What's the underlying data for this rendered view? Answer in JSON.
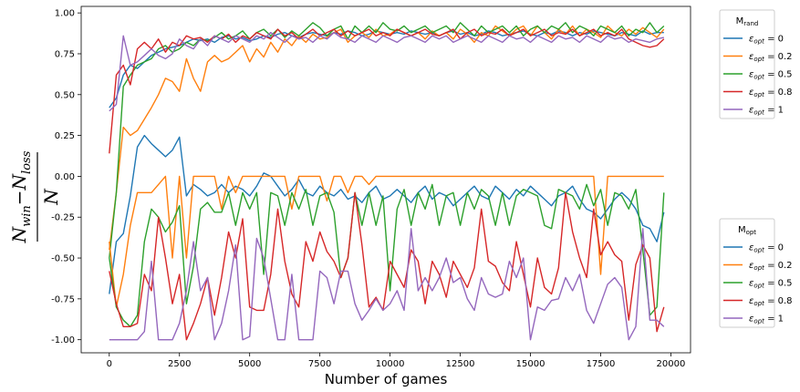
{
  "chart_data": {
    "type": "line",
    "xlabel": "Number of games",
    "ylabel": {
      "num_a": "N",
      "num_a_sub": "win",
      "minus": "−",
      "num_b": "N",
      "num_b_sub": "loss",
      "den": "N"
    },
    "xlim": [
      -1000,
      20700
    ],
    "ylim": [
      -1.08,
      1.04
    ],
    "xticks": [
      0,
      2500,
      5000,
      7500,
      10000,
      12500,
      15000,
      17500,
      20000
    ],
    "yticks": [
      -1.0,
      -0.75,
      -0.5,
      -0.25,
      0.0,
      0.25,
      0.5,
      0.75,
      1.0
    ],
    "x": [
      0,
      250,
      500,
      750,
      1000,
      1250,
      1500,
      1750,
      2000,
      2250,
      2500,
      2750,
      3000,
      3250,
      3500,
      3750,
      4000,
      4250,
      4500,
      4750,
      5000,
      5250,
      5500,
      5750,
      6000,
      6250,
      6500,
      6750,
      7000,
      7250,
      7500,
      7750,
      8000,
      8250,
      8500,
      8750,
      9000,
      9250,
      9500,
      9750,
      10000,
      10250,
      10500,
      10750,
      11000,
      11250,
      11500,
      11750,
      12000,
      12250,
      12500,
      12750,
      13000,
      13250,
      13500,
      13750,
      14000,
      14250,
      14500,
      14750,
      15000,
      15250,
      15500,
      15750,
      16000,
      16250,
      16500,
      16750,
      17000,
      17250,
      17500,
      17750,
      18000,
      18250,
      18500,
      18750,
      19000,
      19250,
      19500,
      19750
    ],
    "legends": [
      {
        "title": "M",
        "title_sub": "rand",
        "position": "upper-right-outside",
        "series": [
          {
            "label_main": "ε",
            "label_sub": "opt",
            "label_val": " = 0",
            "color": "#1f77b4",
            "values": [
              0.42,
              0.48,
              0.62,
              0.68,
              0.66,
              0.7,
              0.74,
              0.76,
              0.78,
              0.79,
              0.8,
              0.82,
              0.84,
              0.83,
              0.84,
              0.82,
              0.85,
              0.86,
              0.84,
              0.85,
              0.83,
              0.84,
              0.86,
              0.85,
              0.87,
              0.88,
              0.86,
              0.85,
              0.87,
              0.88,
              0.87,
              0.86,
              0.88,
              0.87,
              0.89,
              0.88,
              0.86,
              0.87,
              0.89,
              0.88,
              0.87,
              0.88,
              0.87,
              0.89,
              0.88,
              0.87,
              0.88,
              0.86,
              0.88,
              0.89,
              0.87,
              0.88,
              0.86,
              0.87,
              0.89,
              0.88,
              0.86,
              0.87,
              0.88,
              0.89,
              0.87,
              0.86,
              0.88,
              0.87,
              0.89,
              0.88,
              0.86,
              0.88,
              0.87,
              0.89,
              0.88,
              0.87,
              0.86,
              0.88,
              0.87,
              0.86,
              0.89,
              0.87,
              0.88,
              0.88
            ]
          },
          {
            "label_main": "ε",
            "label_sub": "opt",
            "label_val": " = 0.2",
            "color": "#ff7f0e",
            "values": [
              -0.45,
              -0.1,
              0.3,
              0.25,
              0.28,
              0.35,
              0.42,
              0.5,
              0.6,
              0.58,
              0.52,
              0.72,
              0.6,
              0.52,
              0.7,
              0.74,
              0.7,
              0.72,
              0.76,
              0.8,
              0.7,
              0.78,
              0.73,
              0.82,
              0.76,
              0.84,
              0.8,
              0.86,
              0.82,
              0.87,
              0.84,
              0.85,
              0.88,
              0.9,
              0.82,
              0.86,
              0.88,
              0.85,
              0.9,
              0.86,
              0.87,
              0.9,
              0.88,
              0.86,
              0.88,
              0.84,
              0.89,
              0.86,
              0.88,
              0.84,
              0.9,
              0.87,
              0.82,
              0.88,
              0.86,
              0.92,
              0.89,
              0.86,
              0.9,
              0.92,
              0.86,
              0.92,
              0.88,
              0.84,
              0.9,
              0.87,
              0.92,
              0.86,
              0.9,
              0.88,
              0.85,
              0.92,
              0.88,
              0.86,
              0.9,
              0.87,
              0.91,
              0.88,
              0.85,
              0.9
            ]
          },
          {
            "label_main": "ε",
            "label_sub": "opt",
            "label_val": " = 0.5",
            "color": "#2ca02c",
            "values": [
              -0.5,
              -0.1,
              0.55,
              0.62,
              0.68,
              0.7,
              0.72,
              0.78,
              0.8,
              0.76,
              0.78,
              0.82,
              0.8,
              0.84,
              0.83,
              0.85,
              0.88,
              0.84,
              0.86,
              0.89,
              0.84,
              0.88,
              0.9,
              0.86,
              0.9,
              0.85,
              0.89,
              0.86,
              0.9,
              0.94,
              0.91,
              0.86,
              0.9,
              0.92,
              0.84,
              0.92,
              0.88,
              0.92,
              0.88,
              0.94,
              0.9,
              0.89,
              0.92,
              0.88,
              0.9,
              0.92,
              0.88,
              0.9,
              0.92,
              0.88,
              0.94,
              0.9,
              0.86,
              0.92,
              0.88,
              0.9,
              0.92,
              0.88,
              0.92,
              0.86,
              0.9,
              0.92,
              0.88,
              0.92,
              0.9,
              0.94,
              0.88,
              0.92,
              0.9,
              0.86,
              0.92,
              0.9,
              0.88,
              0.92,
              0.86,
              0.9,
              0.88,
              0.94,
              0.88,
              0.92
            ]
          },
          {
            "label_main": "ε",
            "label_sub": "opt",
            "label_val": " = 0.8",
            "color": "#d62728",
            "values": [
              0.14,
              0.62,
              0.68,
              0.56,
              0.78,
              0.82,
              0.78,
              0.84,
              0.76,
              0.82,
              0.8,
              0.86,
              0.84,
              0.85,
              0.82,
              0.86,
              0.84,
              0.87,
              0.82,
              0.86,
              0.84,
              0.88,
              0.86,
              0.84,
              0.9,
              0.86,
              0.88,
              0.84,
              0.87,
              0.9,
              0.86,
              0.88,
              0.9,
              0.86,
              0.89,
              0.86,
              0.88,
              0.9,
              0.86,
              0.88,
              0.86,
              0.9,
              0.88,
              0.86,
              0.88,
              0.9,
              0.87,
              0.86,
              0.88,
              0.9,
              0.84,
              0.88,
              0.9,
              0.86,
              0.88,
              0.87,
              0.9,
              0.86,
              0.88,
              0.9,
              0.86,
              0.88,
              0.9,
              0.86,
              0.88,
              0.87,
              0.9,
              0.86,
              0.88,
              0.9,
              0.86,
              0.88,
              0.86,
              0.9,
              0.84,
              0.82,
              0.8,
              0.79,
              0.8,
              0.84
            ]
          },
          {
            "label_main": "ε",
            "label_sub": "opt",
            "label_val": " = 1",
            "color": "#9467bd",
            "values": [
              0.4,
              0.44,
              0.86,
              0.68,
              0.7,
              0.74,
              0.78,
              0.74,
              0.72,
              0.75,
              0.84,
              0.8,
              0.78,
              0.84,
              0.8,
              0.86,
              0.84,
              0.82,
              0.86,
              0.84,
              0.82,
              0.86,
              0.84,
              0.88,
              0.85,
              0.82,
              0.86,
              0.84,
              0.85,
              0.82,
              0.86,
              0.84,
              0.88,
              0.85,
              0.84,
              0.82,
              0.86,
              0.84,
              0.82,
              0.86,
              0.84,
              0.82,
              0.85,
              0.86,
              0.84,
              0.82,
              0.86,
              0.84,
              0.86,
              0.82,
              0.84,
              0.86,
              0.84,
              0.82,
              0.86,
              0.84,
              0.82,
              0.86,
              0.84,
              0.85,
              0.82,
              0.86,
              0.84,
              0.82,
              0.86,
              0.84,
              0.85,
              0.82,
              0.86,
              0.84,
              0.82,
              0.86,
              0.84,
              0.85,
              0.82,
              0.84,
              0.83,
              0.82,
              0.84,
              0.85
            ]
          }
        ]
      },
      {
        "title": "M",
        "title_sub": "opt",
        "position": "lower-right-outside",
        "series": [
          {
            "label_main": "ε",
            "label_sub": "opt",
            "label_val": " = 0",
            "color": "#1f77b4",
            "values": [
              -0.72,
              -0.4,
              -0.35,
              -0.12,
              0.18,
              0.25,
              0.2,
              0.16,
              0.12,
              0.16,
              0.24,
              -0.12,
              -0.05,
              -0.08,
              -0.12,
              -0.1,
              -0.05,
              -0.1,
              -0.06,
              -0.08,
              -0.12,
              -0.06,
              0.02,
              0.0,
              -0.06,
              -0.12,
              -0.08,
              -0.02,
              -0.1,
              -0.12,
              -0.06,
              -0.1,
              -0.12,
              -0.08,
              -0.14,
              -0.12,
              -0.16,
              -0.1,
              -0.06,
              -0.14,
              -0.12,
              -0.08,
              -0.12,
              -0.16,
              -0.1,
              -0.06,
              -0.14,
              -0.1,
              -0.12,
              -0.18,
              -0.14,
              -0.1,
              -0.06,
              -0.12,
              -0.14,
              -0.06,
              -0.1,
              -0.14,
              -0.08,
              -0.12,
              -0.06,
              -0.1,
              -0.14,
              -0.18,
              -0.12,
              -0.1,
              -0.06,
              -0.14,
              -0.2,
              -0.22,
              -0.26,
              -0.2,
              -0.14,
              -0.1,
              -0.14,
              -0.2,
              -0.3,
              -0.32,
              -0.4,
              -0.22
            ]
          },
          {
            "label_main": "ε",
            "label_sub": "opt",
            "label_val": " = 0.2",
            "color": "#ff7f0e",
            "values": [
              -0.4,
              -0.8,
              -0.6,
              -0.3,
              -0.1,
              -0.1,
              -0.1,
              -0.05,
              0.0,
              -0.5,
              0.0,
              -0.5,
              0.0,
              0.0,
              0.0,
              0.0,
              -0.2,
              0.0,
              -0.1,
              0.0,
              0.0,
              0.0,
              0.0,
              0.0,
              0.0,
              0.0,
              -0.2,
              0.0,
              0.0,
              0.0,
              0.0,
              -0.15,
              0.0,
              0.0,
              -0.1,
              0.0,
              0.0,
              -0.05,
              0.0,
              0.0,
              0.0,
              0.0,
              0.0,
              0.0,
              0.0,
              0.0,
              0.0,
              0.0,
              0.0,
              0.0,
              0.0,
              0.0,
              0.0,
              0.0,
              0.0,
              0.0,
              0.0,
              0.0,
              0.0,
              0.0,
              0.0,
              0.0,
              0.0,
              0.0,
              0.0,
              0.0,
              0.0,
              0.0,
              0.0,
              0.0,
              -0.6,
              0.0,
              0.0,
              0.0,
              0.0,
              0.0,
              0.0,
              0.0,
              0.0,
              0.0
            ]
          },
          {
            "label_main": "ε",
            "label_sub": "opt",
            "label_val": " = 0.5",
            "color": "#2ca02c",
            "values": [
              -0.5,
              -0.8,
              -0.88,
              -0.92,
              -0.85,
              -0.4,
              -0.2,
              -0.25,
              -0.34,
              -0.28,
              -0.18,
              -0.78,
              -0.55,
              -0.2,
              -0.16,
              -0.22,
              -0.22,
              -0.1,
              -0.3,
              -0.1,
              -0.2,
              -0.1,
              -0.6,
              -0.1,
              -0.12,
              -0.3,
              -0.1,
              -0.2,
              -0.08,
              -0.3,
              -0.12,
              -0.1,
              -0.22,
              -0.62,
              -0.5,
              -0.1,
              -0.3,
              -0.1,
              -0.3,
              -0.12,
              -0.7,
              -0.2,
              -0.08,
              -0.3,
              -0.1,
              -0.2,
              -0.05,
              -0.3,
              -0.12,
              -0.1,
              -0.3,
              -0.1,
              -0.2,
              -0.08,
              -0.12,
              -0.3,
              -0.1,
              -0.3,
              -0.12,
              -0.08,
              -0.1,
              -0.12,
              -0.3,
              -0.32,
              -0.08,
              -0.1,
              -0.12,
              -0.2,
              -0.05,
              -0.18,
              -0.08,
              -0.3,
              -0.1,
              -0.12,
              -0.2,
              -0.08,
              -0.45,
              -0.85,
              -0.8,
              -0.1
            ]
          },
          {
            "label_main": "ε",
            "label_sub": "opt",
            "label_val": " = 0.8",
            "color": "#d62728",
            "values": [
              -0.58,
              -0.78,
              -0.92,
              -0.92,
              -0.9,
              -0.6,
              -0.7,
              -0.25,
              -0.5,
              -0.78,
              -0.6,
              -1.0,
              -0.9,
              -0.78,
              -0.62,
              -0.85,
              -0.62,
              -0.34,
              -0.5,
              -0.26,
              -0.8,
              -0.82,
              -0.82,
              -0.6,
              -0.2,
              -0.52,
              -0.72,
              -0.8,
              -0.4,
              -0.52,
              -0.34,
              -0.46,
              -0.52,
              -0.62,
              -0.5,
              -0.1,
              -0.42,
              -0.8,
              -0.74,
              -0.82,
              -0.52,
              -0.6,
              -0.68,
              -0.45,
              -0.52,
              -0.78,
              -0.52,
              -0.6,
              -0.74,
              -0.52,
              -0.6,
              -0.68,
              -0.56,
              -0.2,
              -0.52,
              -0.55,
              -0.65,
              -0.7,
              -0.4,
              -0.6,
              -0.8,
              -0.5,
              -0.68,
              -0.72,
              -0.56,
              -0.1,
              -0.34,
              -0.5,
              -0.62,
              -0.2,
              -0.48,
              -0.4,
              -0.48,
              -0.52,
              -0.88,
              -0.54,
              -0.42,
              -0.5,
              -0.95,
              -0.8
            ]
          },
          {
            "label_main": "ε",
            "label_sub": "opt",
            "label_val": " = 1",
            "color": "#9467bd",
            "values": [
              -1.0,
              -1.0,
              -1.0,
              -1.0,
              -1.0,
              -0.95,
              -0.52,
              -1.0,
              -1.0,
              -1.0,
              -0.9,
              -0.7,
              -0.4,
              -0.7,
              -0.62,
              -1.0,
              -0.9,
              -0.7,
              -0.42,
              -1.0,
              -0.98,
              -0.38,
              -0.5,
              -0.75,
              -1.0,
              -1.0,
              -0.6,
              -1.0,
              -1.0,
              -1.0,
              -0.58,
              -0.62,
              -0.78,
              -0.58,
              -0.58,
              -0.78,
              -0.88,
              -0.82,
              -0.75,
              -0.82,
              -0.78,
              -0.7,
              -0.82,
              -0.32,
              -0.7,
              -0.62,
              -0.7,
              -0.62,
              -0.5,
              -0.65,
              -0.62,
              -0.75,
              -0.82,
              -0.62,
              -0.72,
              -0.74,
              -0.72,
              -0.52,
              -0.62,
              -0.5,
              -1.0,
              -0.8,
              -0.82,
              -0.76,
              -0.75,
              -0.62,
              -0.7,
              -0.6,
              -0.82,
              -0.9,
              -0.78,
              -0.66,
              -0.62,
              -0.68,
              -1.0,
              -0.92,
              -0.32,
              -0.88,
              -0.88,
              -0.92
            ]
          }
        ]
      }
    ]
  }
}
